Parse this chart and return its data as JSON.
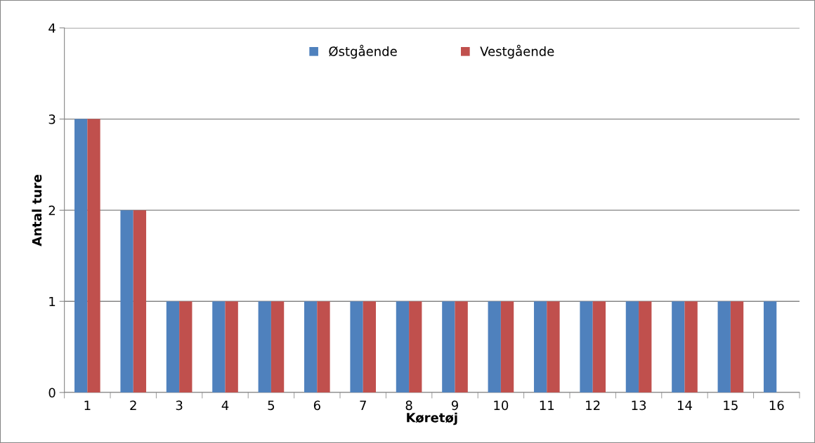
{
  "chart_data": {
    "type": "bar",
    "xlabel": "Køretøj",
    "ylabel": "Antal ture",
    "categories": [
      "1",
      "2",
      "3",
      "4",
      "5",
      "6",
      "7",
      "8",
      "9",
      "10",
      "11",
      "12",
      "13",
      "14",
      "15",
      "16"
    ],
    "series": [
      {
        "name": "Østgående",
        "color": "#4f81bd",
        "values": [
          3,
          2,
          1,
          1,
          1,
          1,
          1,
          1,
          1,
          1,
          1,
          1,
          1,
          1,
          1,
          1
        ]
      },
      {
        "name": "Vestgående",
        "color": "#c0504d",
        "values": [
          3,
          2,
          1,
          1,
          1,
          1,
          1,
          1,
          1,
          1,
          1,
          1,
          1,
          1,
          1,
          null
        ]
      }
    ],
    "ylim": [
      0,
      4
    ],
    "yticks": [
      0,
      1,
      2,
      3,
      4
    ],
    "grid": "y",
    "legend": "top"
  }
}
